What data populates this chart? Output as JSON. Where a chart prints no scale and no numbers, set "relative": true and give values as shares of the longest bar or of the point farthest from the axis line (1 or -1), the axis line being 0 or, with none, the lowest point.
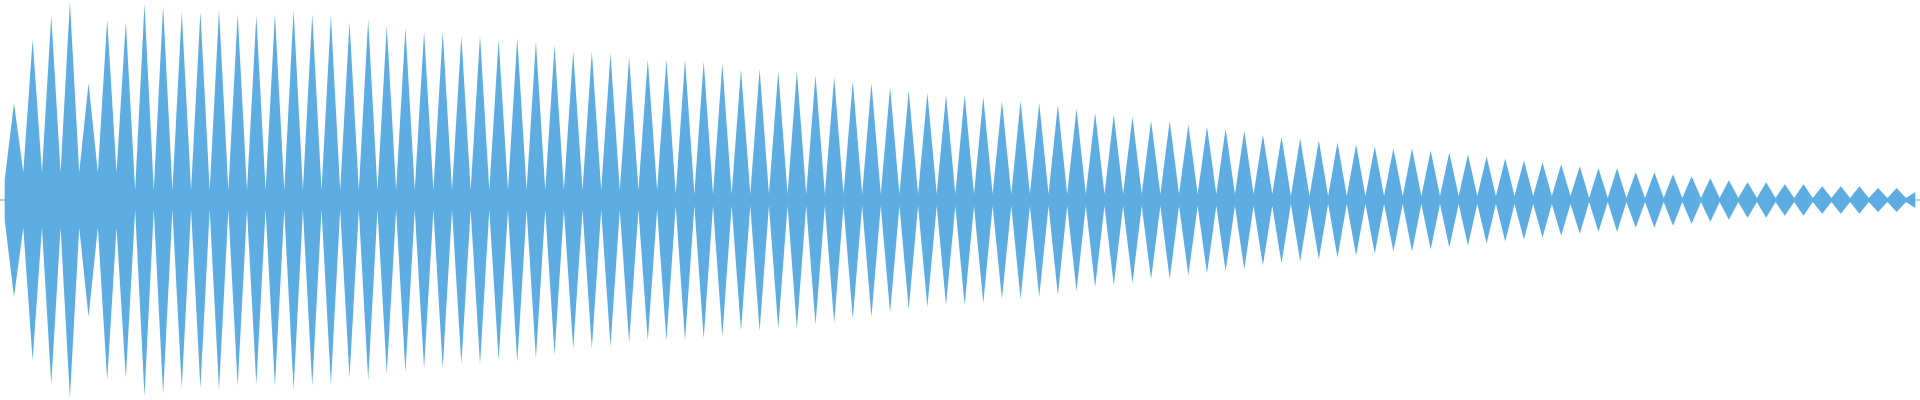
{
  "chart_data": {
    "type": "area",
    "relative": true,
    "ref_lines": [
      {
        "axis": "y",
        "value": 0,
        "color": "#5dade2"
      }
    ],
    "categories": [
      null,
      null,
      null,
      null,
      null,
      null,
      null,
      null,
      null,
      null,
      null,
      null,
      null,
      null,
      null,
      null,
      null,
      null,
      null,
      null,
      null,
      null,
      null,
      null,
      null,
      null,
      null,
      null,
      null,
      null,
      null,
      null,
      null,
      null,
      null,
      null,
      null,
      null,
      null,
      null,
      null,
      null,
      null,
      null,
      null,
      null,
      null,
      null,
      null,
      null,
      null,
      null,
      null,
      null,
      null,
      null,
      null,
      null,
      null,
      null,
      null,
      null,
      null,
      null,
      null,
      null,
      null,
      null,
      null,
      null,
      null,
      null,
      null,
      null,
      null,
      null,
      null,
      null,
      null,
      null,
      null,
      null,
      null,
      null,
      null,
      null,
      null,
      null,
      null,
      null,
      null,
      null,
      null,
      null,
      null,
      null,
      null,
      null,
      null,
      null,
      null,
      null,
      null,
      null,
      null,
      null,
      null,
      null,
      null,
      null,
      null,
      null,
      null,
      null,
      null,
      null,
      null,
      null,
      null,
      null,
      null,
      null,
      null,
      null,
      null,
      null,
      null,
      null,
      null,
      null,
      null,
      null,
      null,
      null,
      null,
      null,
      null,
      null,
      null,
      null,
      null,
      null,
      null,
      null,
      null,
      null,
      null,
      null,
      null,
      null,
      null,
      null,
      null,
      null,
      null,
      null,
      null,
      null,
      null,
      null,
      null,
      null,
      null,
      null,
      null,
      null,
      null,
      null,
      null,
      null,
      null,
      null,
      null,
      null,
      null,
      null,
      null,
      null,
      null,
      null,
      null,
      null,
      null,
      null,
      null,
      null,
      null,
      null,
      null,
      null,
      null,
      null,
      null,
      null,
      null,
      null,
      null,
      null,
      null,
      null,
      null,
      null,
      null,
      null,
      null,
      null
    ],
    "series": [
      {
        "color": "#5dade2",
        "values": [
          0.1,
          0.49,
          0.14,
          0.81,
          0.14,
          0.93,
          0.14,
          1.0,
          0.14,
          0.59,
          0.14,
          0.91,
          0.14,
          0.9,
          0.05,
          0.99,
          0.05,
          0.98,
          0.05,
          0.95,
          0.05,
          0.95,
          0.05,
          0.96,
          0.05,
          0.94,
          0.05,
          0.93,
          0.05,
          0.94,
          0.05,
          0.96,
          0.05,
          0.94,
          0.05,
          0.93,
          0.05,
          0.9,
          0.05,
          0.91,
          0.05,
          0.88,
          0.05,
          0.87,
          0.05,
          0.85,
          0.05,
          0.85,
          0.05,
          0.83,
          0.05,
          0.83,
          0.05,
          0.81,
          0.05,
          0.82,
          0.05,
          0.8,
          0.05,
          0.78,
          0.05,
          0.75,
          0.05,
          0.75,
          0.05,
          0.74,
          0.05,
          0.72,
          0.05,
          0.71,
          0.05,
          0.71,
          0.03,
          0.71,
          0.03,
          0.7,
          0.03,
          0.69,
          0.03,
          0.66,
          0.03,
          0.66,
          0.03,
          0.65,
          0.03,
          0.65,
          0.03,
          0.63,
          0.03,
          0.62,
          0.03,
          0.6,
          0.03,
          0.59,
          0.03,
          0.57,
          0.03,
          0.55,
          0.03,
          0.54,
          0.03,
          0.53,
          0.03,
          0.53,
          0.03,
          0.52,
          0.03,
          0.5,
          0.03,
          0.5,
          0.03,
          0.49,
          0.03,
          0.48,
          0.03,
          0.46,
          0.03,
          0.44,
          0.03,
          0.43,
          0.03,
          0.42,
          0.03,
          0.4,
          0.03,
          0.4,
          0.03,
          0.38,
          0.03,
          0.37,
          0.03,
          0.36,
          0.03,
          0.35,
          0.03,
          0.33,
          0.03,
          0.32,
          0.02,
          0.31,
          0.02,
          0.3,
          0.02,
          0.29,
          0.02,
          0.28,
          0.02,
          0.27,
          0.02,
          0.26,
          0.02,
          0.26,
          0.02,
          0.25,
          0.02,
          0.24,
          0.02,
          0.23,
          0.02,
          0.22,
          0.02,
          0.21,
          0.02,
          0.2,
          0.02,
          0.19,
          0.02,
          0.18,
          0.02,
          0.17,
          0.01,
          0.16,
          0.01,
          0.16,
          0.01,
          0.14,
          0.01,
          0.14,
          0.01,
          0.13,
          0.01,
          0.12,
          0.01,
          0.11,
          0.01,
          0.1,
          0.01,
          0.09,
          0.01,
          0.09,
          0.01,
          0.08,
          0.01,
          0.08,
          0.01,
          0.07,
          0.01,
          0.07,
          0.01,
          0.07,
          0.01,
          0.06,
          0.01,
          0.06,
          0.01,
          0.04
        ]
      },
      {
        "color": "#5dade2",
        "values": [
          -0.1,
          -0.49,
          -0.14,
          -0.81,
          -0.14,
          -0.93,
          -0.14,
          -1.0,
          -0.14,
          -0.59,
          -0.14,
          -0.91,
          -0.14,
          -0.9,
          -0.05,
          -0.99,
          -0.05,
          -0.98,
          -0.05,
          -0.95,
          -0.05,
          -0.95,
          -0.05,
          -0.96,
          -0.05,
          -0.94,
          -0.05,
          -0.93,
          -0.05,
          -0.94,
          -0.05,
          -0.96,
          -0.05,
          -0.94,
          -0.05,
          -0.93,
          -0.05,
          -0.9,
          -0.05,
          -0.91,
          -0.05,
          -0.88,
          -0.05,
          -0.87,
          -0.05,
          -0.85,
          -0.05,
          -0.85,
          -0.05,
          -0.83,
          -0.05,
          -0.83,
          -0.05,
          -0.81,
          -0.05,
          -0.82,
          -0.05,
          -0.8,
          -0.05,
          -0.78,
          -0.05,
          -0.75,
          -0.05,
          -0.75,
          -0.05,
          -0.74,
          -0.05,
          -0.72,
          -0.05,
          -0.71,
          -0.05,
          -0.71,
          -0.03,
          -0.71,
          -0.03,
          -0.7,
          -0.03,
          -0.69,
          -0.03,
          -0.66,
          -0.03,
          -0.66,
          -0.03,
          -0.65,
          -0.03,
          -0.65,
          -0.03,
          -0.63,
          -0.03,
          -0.62,
          -0.03,
          -0.6,
          -0.03,
          -0.59,
          -0.03,
          -0.57,
          -0.03,
          -0.55,
          -0.03,
          -0.54,
          -0.03,
          -0.53,
          -0.03,
          -0.53,
          -0.03,
          -0.52,
          -0.03,
          -0.5,
          -0.03,
          -0.5,
          -0.03,
          -0.49,
          -0.03,
          -0.48,
          -0.03,
          -0.46,
          -0.03,
          -0.44,
          -0.03,
          -0.43,
          -0.03,
          -0.42,
          -0.03,
          -0.4,
          -0.03,
          -0.4,
          -0.03,
          -0.38,
          -0.03,
          -0.37,
          -0.03,
          -0.36,
          -0.03,
          -0.35,
          -0.03,
          -0.33,
          -0.03,
          -0.32,
          -0.02,
          -0.31,
          -0.02,
          -0.3,
          -0.02,
          -0.29,
          -0.02,
          -0.28,
          -0.02,
          -0.27,
          -0.02,
          -0.26,
          -0.02,
          -0.26,
          -0.02,
          -0.25,
          -0.02,
          -0.24,
          -0.02,
          -0.23,
          -0.02,
          -0.22,
          -0.02,
          -0.21,
          -0.02,
          -0.2,
          -0.02,
          -0.19,
          -0.02,
          -0.18,
          -0.02,
          -0.17,
          -0.01,
          -0.16,
          -0.01,
          -0.16,
          -0.01,
          -0.14,
          -0.01,
          -0.14,
          -0.01,
          -0.13,
          -0.01,
          -0.12,
          -0.01,
          -0.11,
          -0.01,
          -0.1,
          -0.01,
          -0.09,
          -0.01,
          -0.09,
          -0.01,
          -0.08,
          -0.01,
          -0.08,
          -0.01,
          -0.07,
          -0.01,
          -0.07,
          -0.01,
          -0.07,
          -0.01,
          -0.06,
          -0.01,
          -0.06,
          -0.01,
          -0.04
        ]
      }
    ]
  }
}
